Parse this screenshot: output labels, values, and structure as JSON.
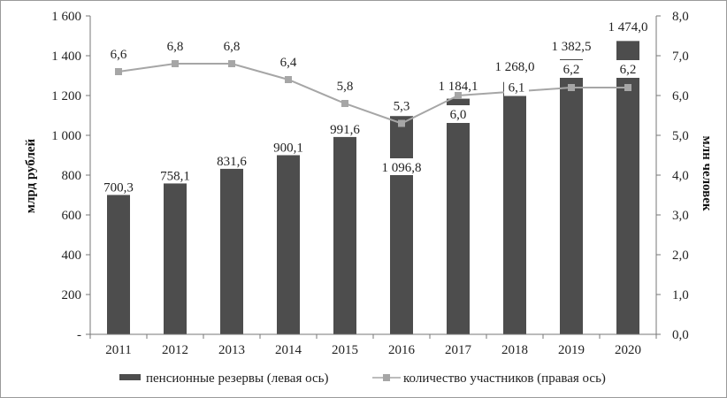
{
  "chart_data": {
    "type": "bar+line",
    "categories": [
      "2011",
      "2012",
      "2013",
      "2014",
      "2015",
      "2016",
      "2017",
      "2018",
      "2019",
      "2020"
    ],
    "series": [
      {
        "name": "пенсионные резервы (левая ось)",
        "axis": "left",
        "type": "bar",
        "color": "#4d4d4d",
        "values": [
          700.3,
          758.1,
          831.6,
          900.1,
          991.6,
          1096.8,
          1184.1,
          1268.0,
          1382.5,
          1474.0
        ],
        "labels": [
          "700,3",
          "758,1",
          "831,6",
          "900,1",
          "991,6",
          "1 096,8",
          "1 184,1",
          "1 268,0",
          "1 382,5",
          "1 474,0"
        ]
      },
      {
        "name": "количество участников (правая ось)",
        "axis": "right",
        "type": "line",
        "color": "#a6a6a6",
        "values": [
          6.6,
          6.8,
          6.8,
          6.4,
          5.8,
          5.3,
          6.0,
          6.1,
          6.2,
          6.2
        ],
        "labels": [
          "6,6",
          "6,8",
          "6,8",
          "6,4",
          "5,8",
          "5,3",
          "6,0",
          "6,1",
          "6,2",
          "6,2"
        ]
      }
    ],
    "left_axis": {
      "label": "млрд рублей",
      "ylim": [
        0,
        1600
      ],
      "ticks": [
        0,
        200,
        400,
        600,
        800,
        1000,
        1200,
        1400,
        1600
      ],
      "tick_labels": [
        "-",
        "200",
        "400",
        "600",
        "800",
        "1 000",
        "1 200",
        "1 400",
        "1 600"
      ]
    },
    "right_axis": {
      "label": "млн человек",
      "ylim": [
        0,
        8
      ],
      "ticks": [
        0,
        1,
        2,
        3,
        4,
        5,
        6,
        7,
        8
      ],
      "tick_labels": [
        "0,0",
        "1,0",
        "2,0",
        "3,0",
        "4,0",
        "5,0",
        "6,0",
        "7,0",
        "8,0"
      ]
    },
    "grid": false,
    "legend_position": "bottom"
  }
}
